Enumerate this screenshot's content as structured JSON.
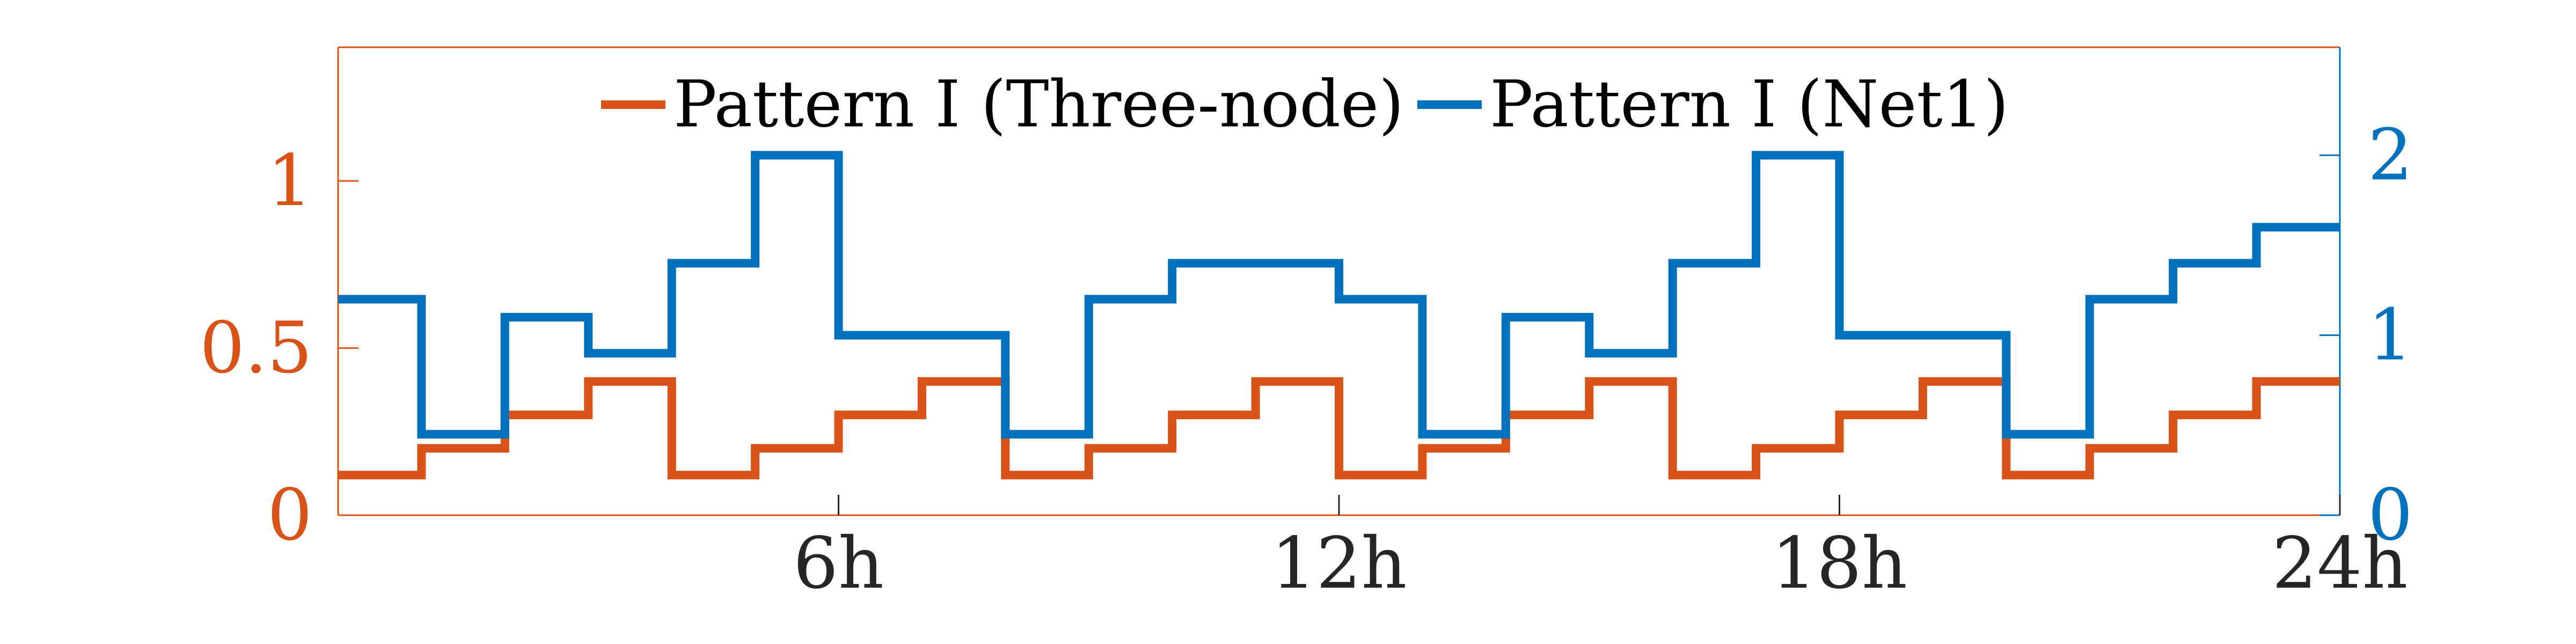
{
  "chart_data": {
    "type": "line",
    "step": true,
    "title": "",
    "xlabel": "",
    "x_ticks": [
      6,
      12,
      18,
      24
    ],
    "x_tick_labels": [
      "6h",
      "12h",
      "18h",
      "24h"
    ],
    "xlim": [
      0,
      24
    ],
    "y_left": {
      "ylim": [
        0,
        1.4
      ],
      "ticks": [
        0,
        0.5,
        1
      ],
      "tick_labels": [
        "0",
        "0.5",
        "1"
      ],
      "color": "#D95319"
    },
    "y_right": {
      "ylim": [
        0,
        2.6
      ],
      "ticks": [
        0,
        1,
        2
      ],
      "tick_labels": [
        "0",
        "1",
        "2"
      ],
      "color": "#0072BD"
    },
    "legend_position": "top-center",
    "grid": false,
    "series": [
      {
        "name": "Pattern I (Three-node)",
        "axis": "left",
        "color": "#D95319",
        "values": [
          0.12,
          0.2,
          0.3,
          0.4,
          0.12,
          0.2,
          0.3,
          0.4,
          0.12,
          0.2,
          0.3,
          0.4,
          0.12,
          0.2,
          0.3,
          0.4,
          0.12,
          0.2,
          0.3,
          0.4,
          0.12,
          0.2,
          0.3,
          0.4
        ]
      },
      {
        "name": "Pattern I (Net1)",
        "axis": "right",
        "color": "#0072BD",
        "values": [
          1.2,
          0.45,
          1.1,
          0.9,
          1.4,
          2.0,
          1.0,
          1.0,
          0.45,
          1.2,
          1.4,
          1.4,
          1.2,
          0.45,
          1.1,
          0.9,
          1.4,
          2.0,
          1.0,
          1.0,
          0.45,
          1.2,
          1.4,
          1.6
        ]
      }
    ]
  }
}
